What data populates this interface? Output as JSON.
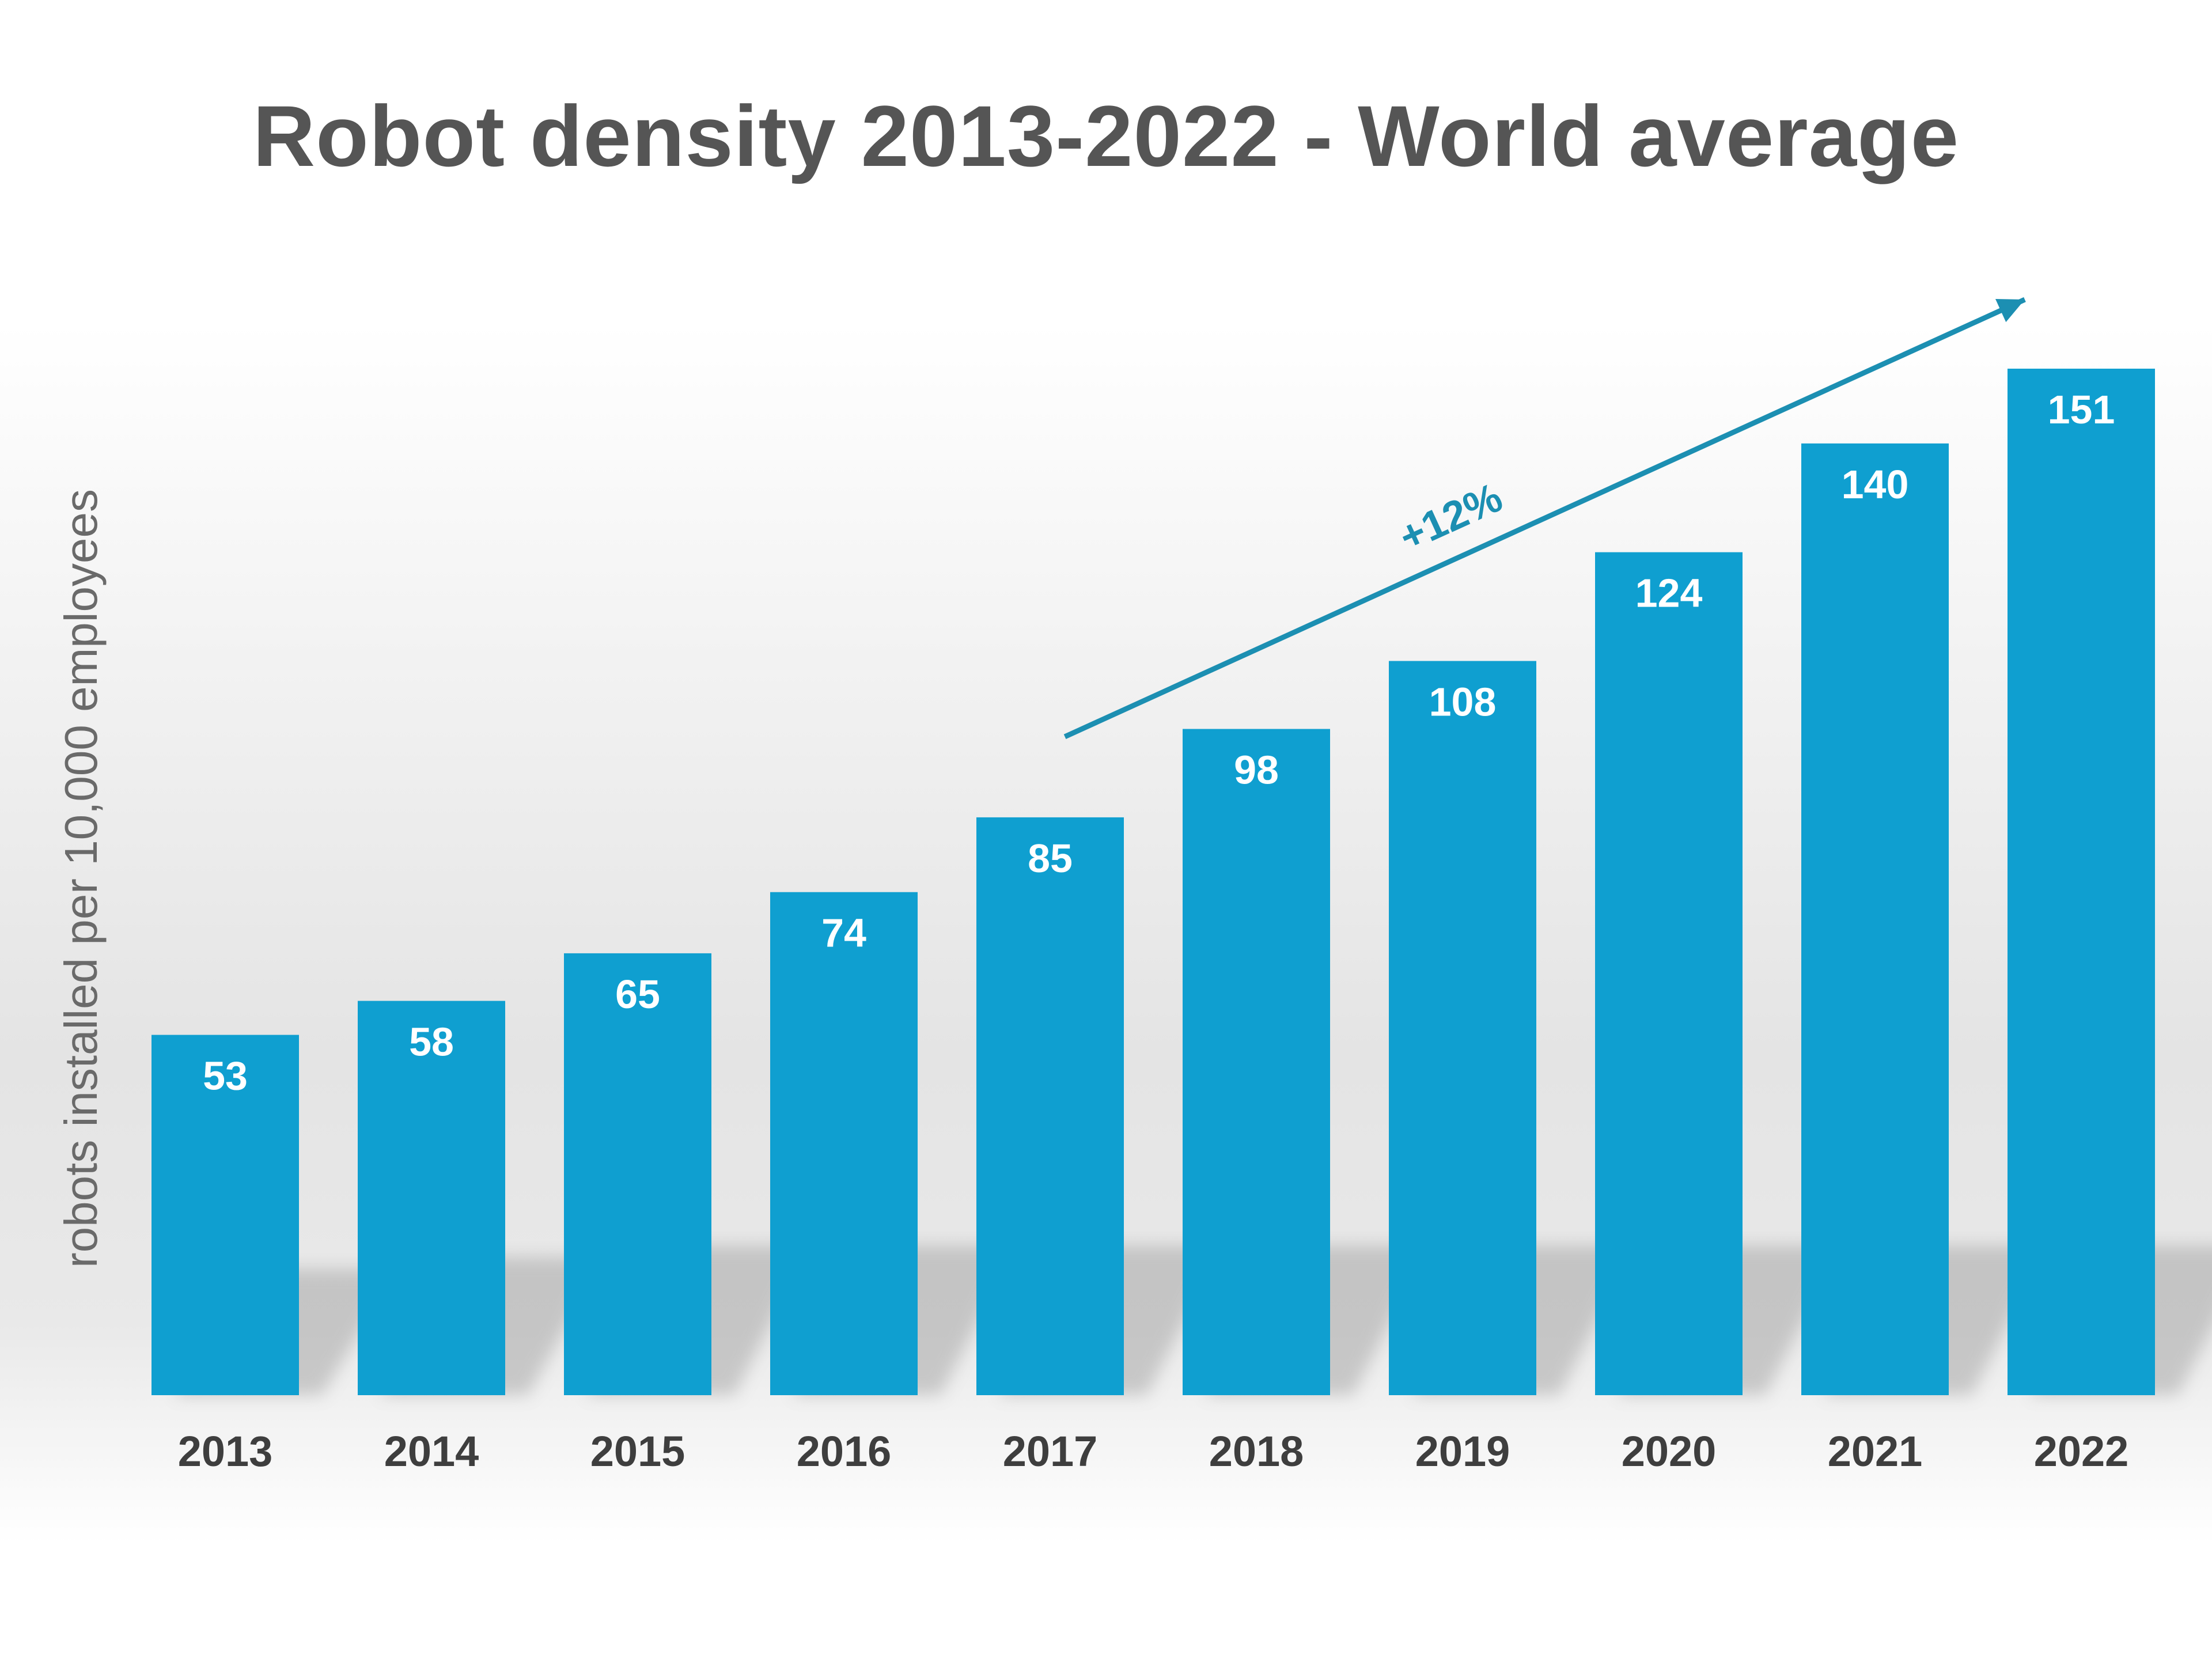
{
  "chart_data": {
    "type": "bar",
    "title": "Robot density 2013-2022 - World average",
    "ylabel": "robots installed per 10,000 employees",
    "xlabel": "",
    "categories": [
      "2013",
      "2014",
      "2015",
      "2016",
      "2017",
      "2018",
      "2019",
      "2020",
      "2021",
      "2022"
    ],
    "values": [
      53,
      58,
      65,
      74,
      85,
      98,
      108,
      124,
      140,
      151
    ],
    "data_labels": [
      "53",
      "58",
      "65",
      "74",
      "85",
      "98",
      "108",
      "124",
      "140",
      "151"
    ],
    "bar_color": "#0f9fd0",
    "annotation": {
      "text": "+12%",
      "from_category": "2017",
      "to_category": "2022",
      "color": "#1c8fb2"
    },
    "grid": false,
    "legend": "none"
  }
}
